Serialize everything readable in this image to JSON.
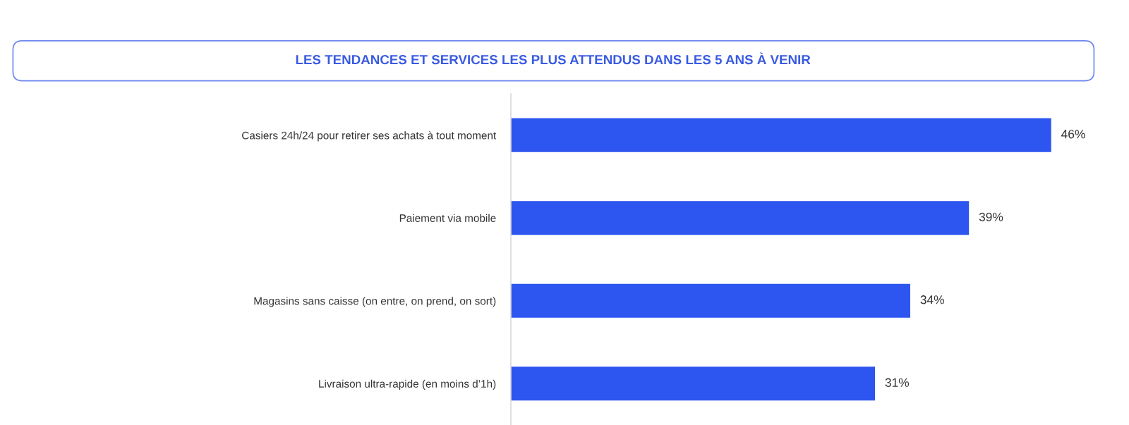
{
  "chart_data": {
    "type": "bar",
    "orientation": "horizontal",
    "title": "LES TENDANCES ET SERVICES LES PLUS ATTENDUS DANS LES 5 ANS À VENIR",
    "categories": [
      "Casiers 24h/24 pour retirer ses achats à tout moment",
      "Paiement via mobile",
      "Magasins sans caisse (on entre, on prend, on sort)",
      "Livraison ultra-rapide (en moins d’1h)"
    ],
    "values": [
      46,
      39,
      34,
      31
    ],
    "value_labels": [
      "46%",
      "39%",
      "34%",
      "31%"
    ],
    "color": "#2d55f0",
    "grid": false,
    "tick_labels": "y"
  }
}
